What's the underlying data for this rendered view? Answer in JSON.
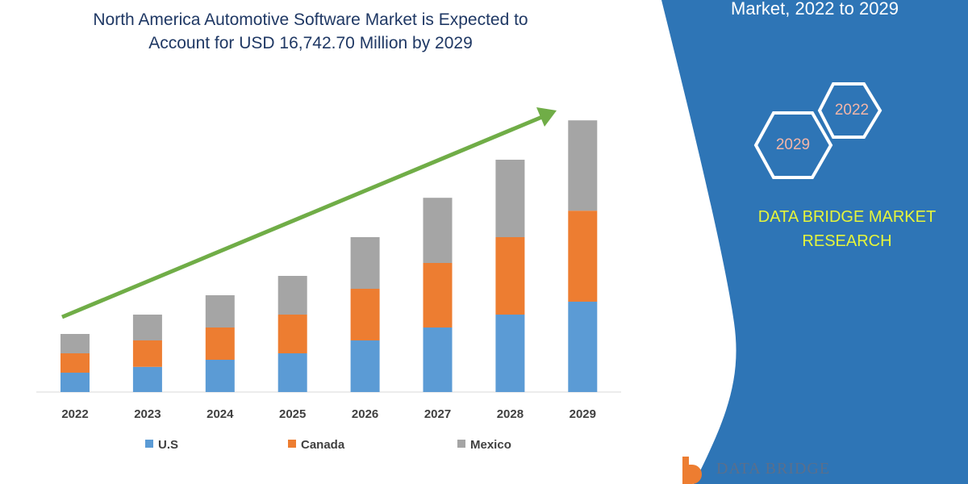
{
  "title_line1": "North America Automotive Software Market is Expected to",
  "title_line2": "Account for USD 16,742.70 Million by 2029",
  "side_panel": {
    "subtitle": "Market, 2022 to 2029",
    "hex_labels": [
      "2022",
      "2029"
    ],
    "brand_line1": "DATA BRIDGE MARKET",
    "brand_line2": "RESEARCH",
    "logo_text": "DATA BRIDGE",
    "panel_color": "#2E75B6"
  },
  "chart_data": {
    "type": "bar",
    "stacked": true,
    "categories": [
      "2022",
      "2023",
      "2024",
      "2025",
      "2026",
      "2027",
      "2028",
      "2029"
    ],
    "series": [
      {
        "name": "U.S",
        "color": "#5B9BD5",
        "values": [
          3,
          3.9,
          5,
          6,
          8,
          10,
          12,
          14
        ]
      },
      {
        "name": "Canada",
        "color": "#ED7D31",
        "values": [
          3,
          4.1,
          5,
          6,
          8,
          10,
          12,
          14.1
        ]
      },
      {
        "name": "Mexico",
        "color": "#A5A5A5",
        "values": [
          3,
          4,
          5,
          6,
          8,
          10.1,
          12,
          14
        ]
      }
    ],
    "ylim": [
      0,
      45
    ],
    "y_axis_shown": false,
    "grid": false,
    "legend_position": "bottom",
    "trend_arrow_color": "#70AD47"
  }
}
